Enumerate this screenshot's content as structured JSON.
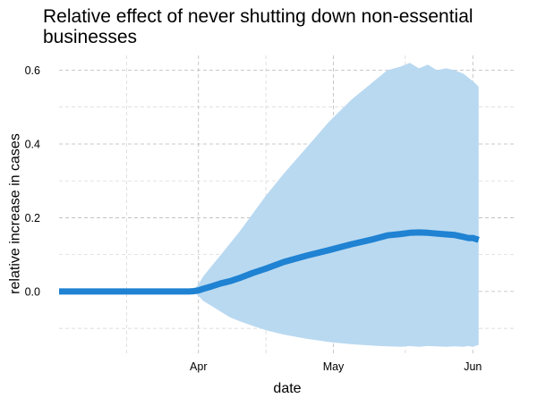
{
  "chart_data": {
    "type": "area",
    "title_lines": [
      "Relative effect of never shutting down non-essential",
      "businesses"
    ],
    "xlabel": "date",
    "ylabel": "relative increase in cases",
    "x_ticks": [
      "Apr",
      "May",
      "Jun"
    ],
    "y_ticks": [
      "0.0",
      "0.2",
      "0.4",
      "0.6"
    ],
    "x_tick_positions": [
      31,
      61,
      92
    ],
    "y_tick_values": [
      0.0,
      0.2,
      0.4,
      0.6
    ],
    "x_minor_positions": [
      15,
      46,
      77
    ],
    "y_minor_values": [
      -0.1,
      0.1,
      0.3,
      0.5
    ],
    "xlim": [
      0,
      101.5
    ],
    "ylim": [
      -0.17,
      0.64
    ],
    "grid": true,
    "colors": {
      "line": "#1f82d2",
      "band": "#b9d9f1"
    },
    "series": [
      {
        "x": [
          0,
          5,
          10,
          15,
          20,
          25,
          29,
          30,
          31,
          32,
          34,
          36,
          38,
          40,
          43,
          46,
          50,
          55,
          60,
          65,
          70,
          73,
          76,
          78,
          80,
          82,
          84,
          86,
          88,
          90,
          91,
          92,
          92.5,
          93.3
        ],
        "mean": [
          0,
          0,
          0,
          0,
          0,
          0,
          0,
          0.001,
          0.003,
          0.007,
          0.014,
          0.022,
          0.028,
          0.036,
          0.05,
          0.062,
          0.08,
          0.097,
          0.112,
          0.128,
          0.142,
          0.152,
          0.156,
          0.159,
          0.16,
          0.159,
          0.157,
          0.155,
          0.153,
          0.148,
          0.145,
          0.145,
          0.143,
          0.14
        ],
        "upper": [
          0,
          0,
          0,
          0,
          0,
          0,
          0,
          0.005,
          0.02,
          0.04,
          0.07,
          0.1,
          0.13,
          0.16,
          0.21,
          0.26,
          0.32,
          0.39,
          0.46,
          0.52,
          0.57,
          0.6,
          0.61,
          0.62,
          0.605,
          0.615,
          0.6,
          0.605,
          0.6,
          0.59,
          0.58,
          0.57,
          0.565,
          0.555
        ],
        "lower": [
          0,
          0,
          0,
          0,
          0,
          0,
          0,
          -0.003,
          -0.012,
          -0.025,
          -0.04,
          -0.055,
          -0.07,
          -0.08,
          -0.093,
          -0.105,
          -0.117,
          -0.128,
          -0.137,
          -0.143,
          -0.147,
          -0.149,
          -0.15,
          -0.148,
          -0.15,
          -0.148,
          -0.149,
          -0.15,
          -0.149,
          -0.15,
          -0.148,
          -0.15,
          -0.148,
          -0.145
        ]
      }
    ]
  }
}
